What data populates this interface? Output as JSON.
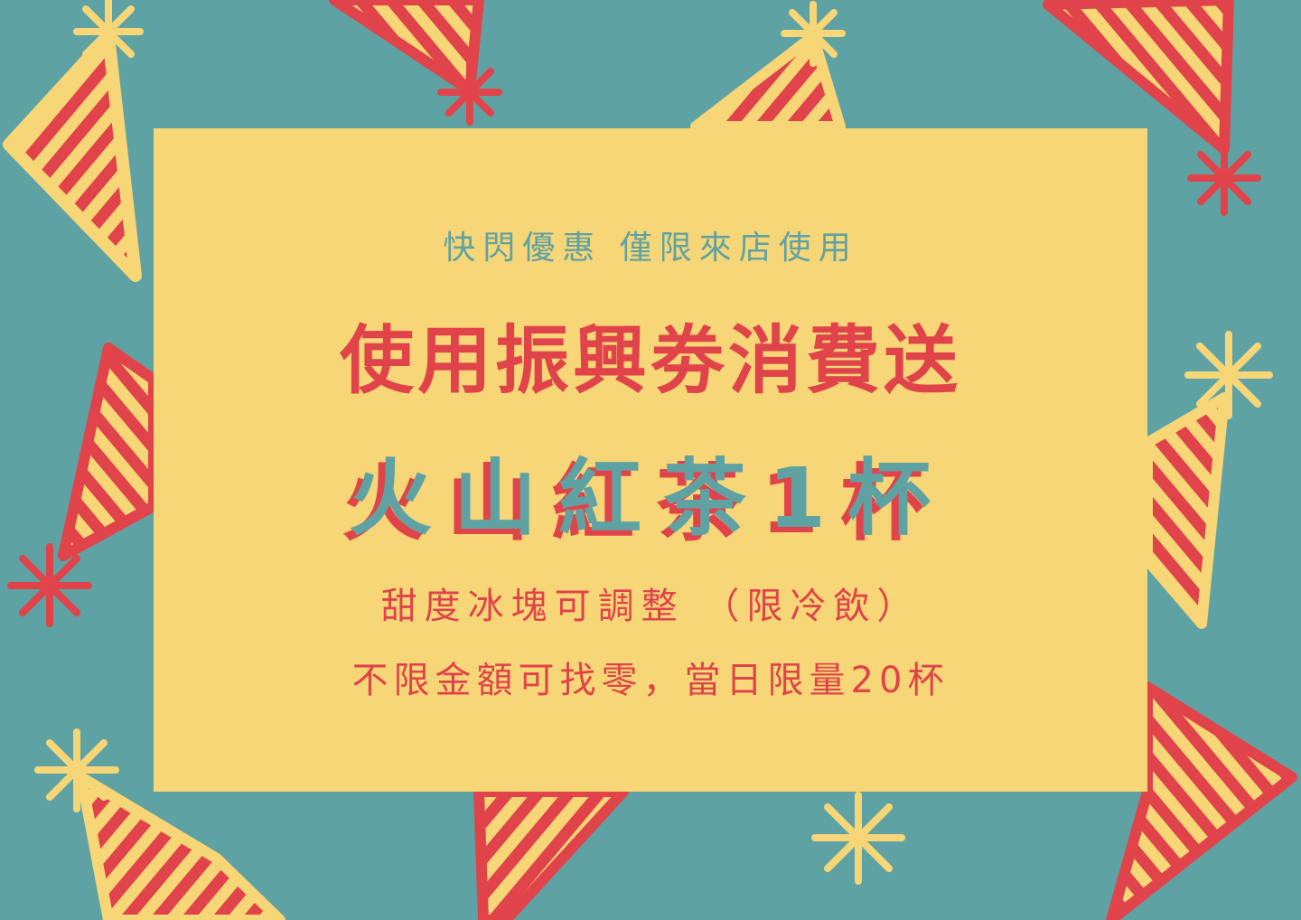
{
  "poster": {
    "subtitle": "快閃優惠  僅限來店使用",
    "headline": "使用振興劵消費送",
    "product": "火山紅茶1杯",
    "note_line1": "甜度冰塊可調整 （限冷飲）",
    "note_line2": "不限金額可找零，當日限量20杯"
  },
  "colors": {
    "background": "#5fa2a3",
    "card": "#f6d677",
    "accent_red": "#e0444a",
    "accent_teal": "#5fa2a3"
  },
  "decorations": {
    "icon": "party-hat-icon",
    "pompom_icon": "pompom-burst-icon"
  }
}
